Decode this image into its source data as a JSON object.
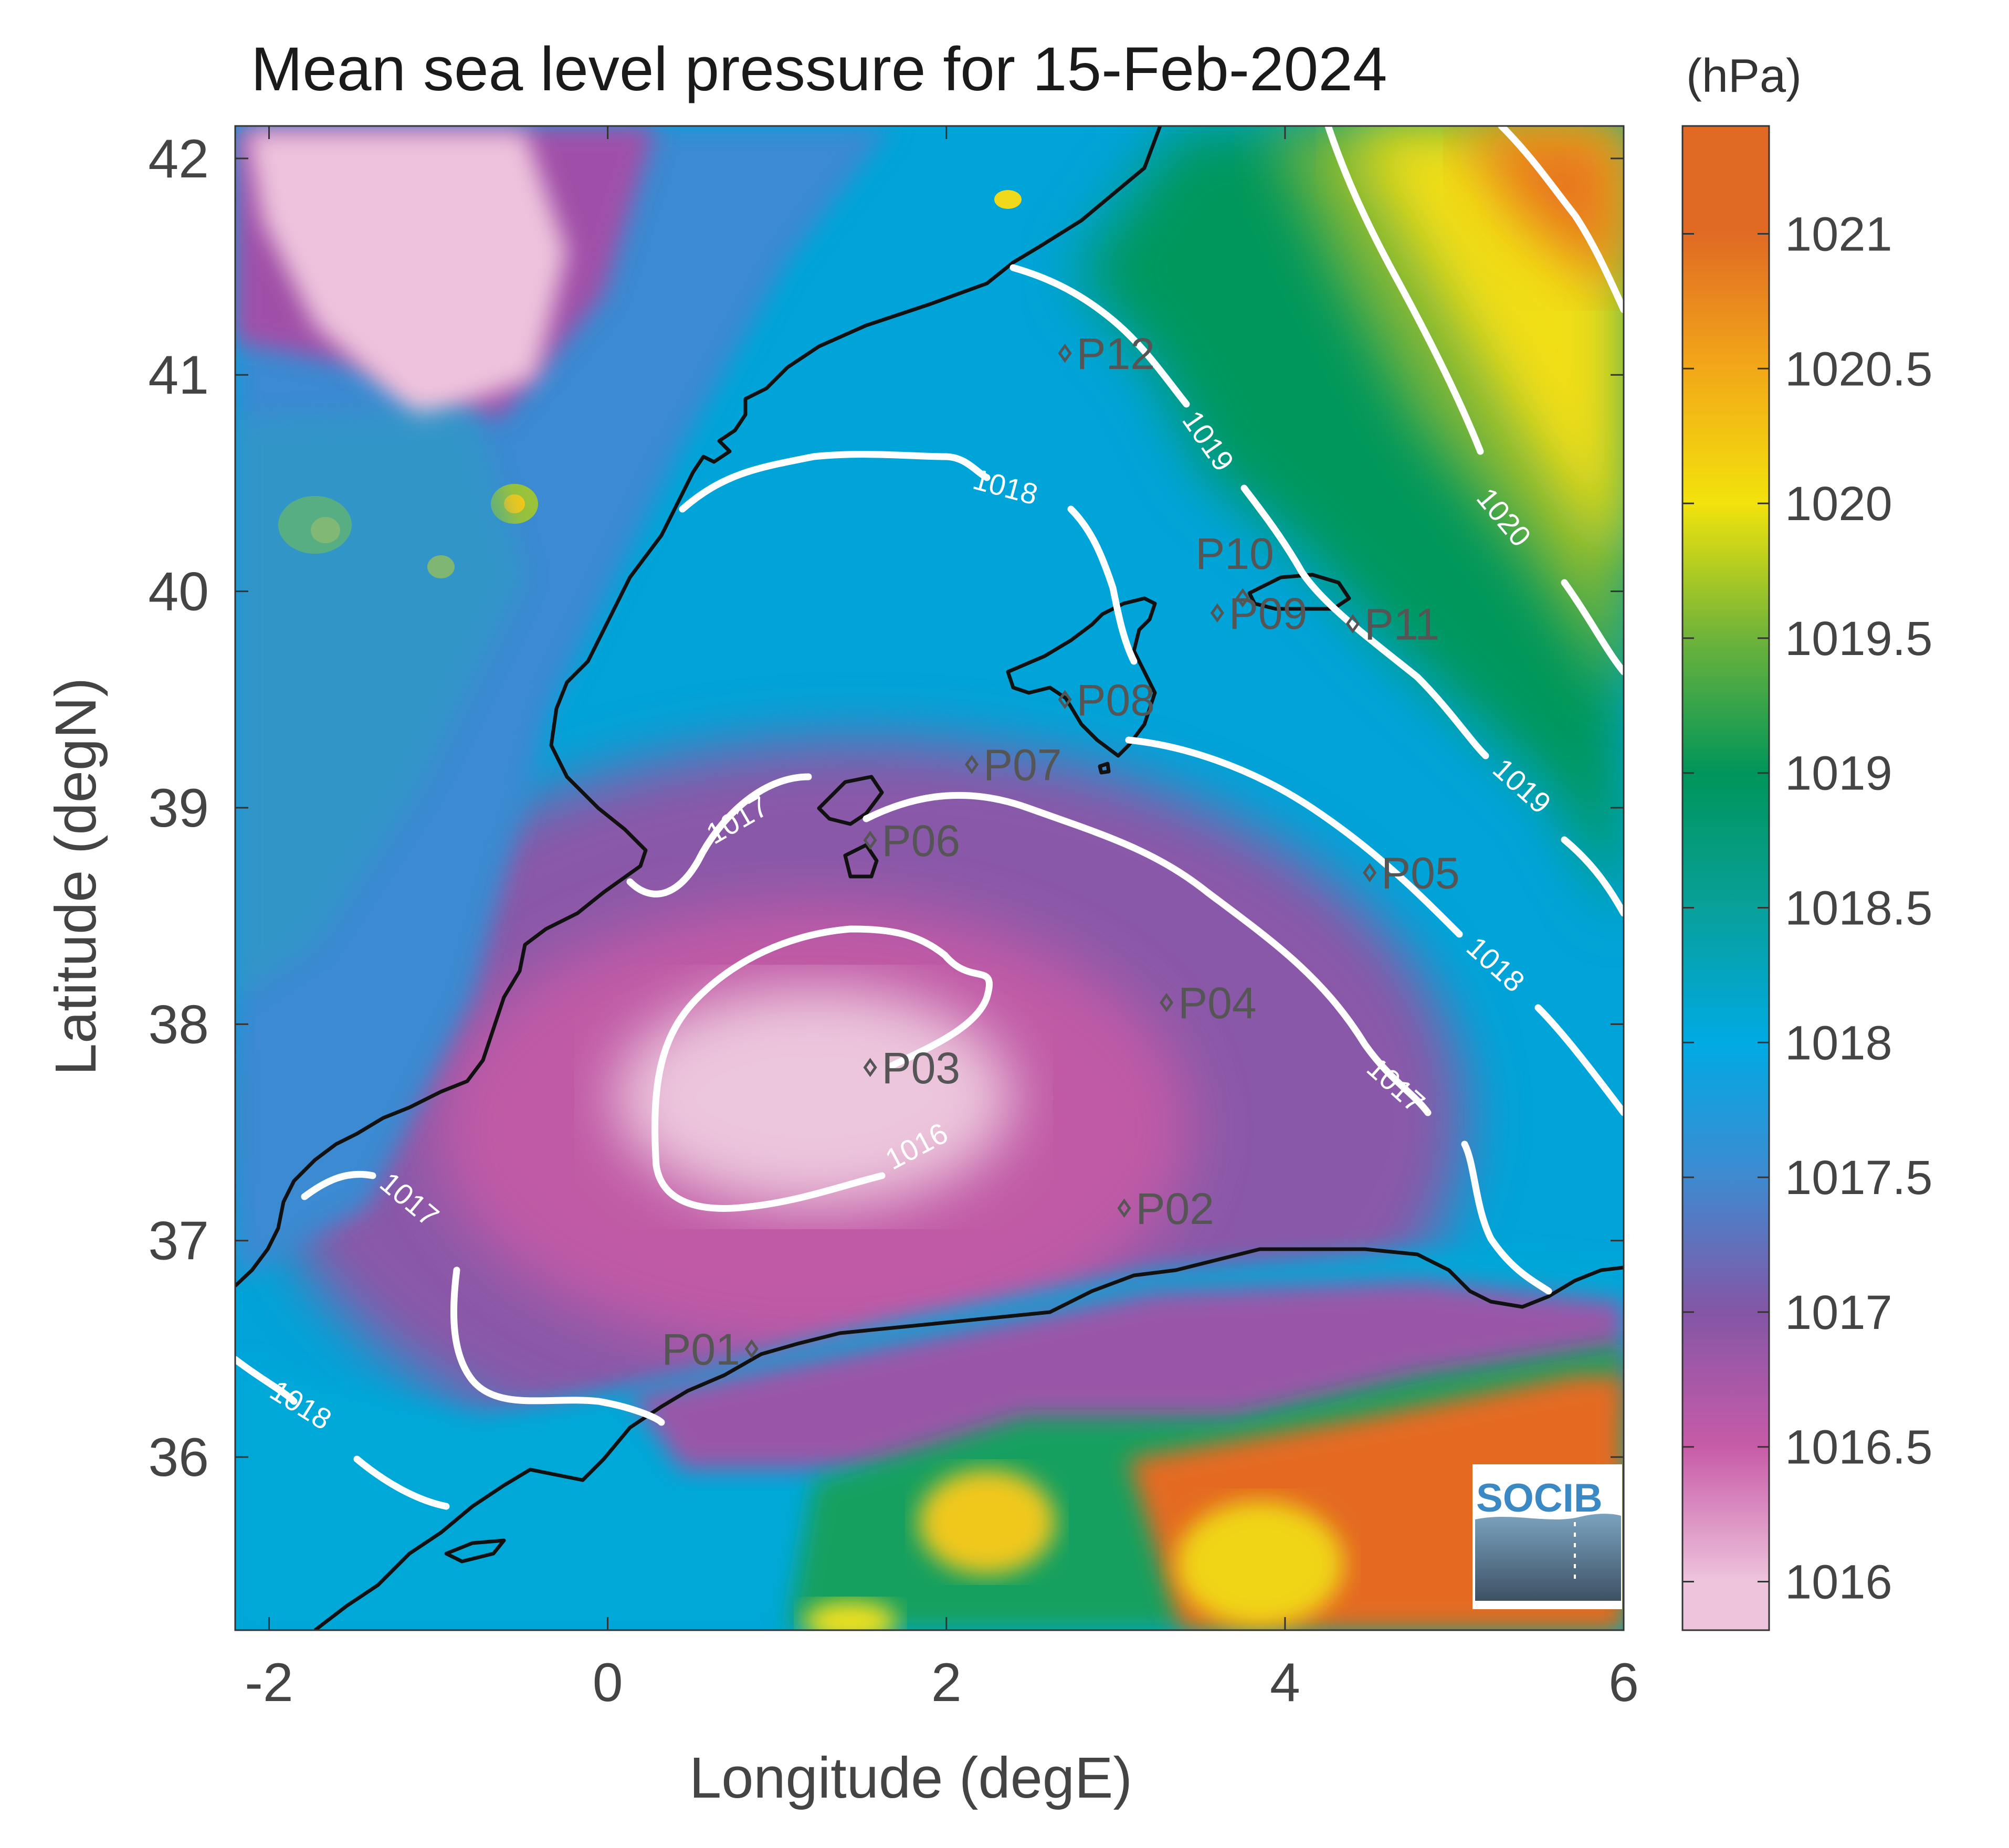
{
  "title": "Mean sea level pressure for 15-Feb-2024",
  "chart_data": {
    "type": "heatmap",
    "title": "Mean sea level pressure for 15-Feb-2024",
    "xlabel": "Longitude (degE)",
    "ylabel": "Latitude (degN)",
    "xlim": [
      -2.2,
      6
    ],
    "ylim": [
      35.2,
      42.15
    ],
    "xticks": [
      "-2",
      "0",
      "2",
      "4",
      "6"
    ],
    "xtick_values": [
      -2,
      0,
      2,
      4,
      6
    ],
    "yticks": [
      "36",
      "37",
      "38",
      "39",
      "40",
      "41",
      "42"
    ],
    "ytick_values": [
      36,
      37,
      38,
      39,
      40,
      41,
      42
    ],
    "colorbar": {
      "unit": "(hPa)",
      "range": [
        1015.82,
        1021.4
      ],
      "ticks": [
        "1016",
        "1016.5",
        "1017",
        "1017.5",
        "1018",
        "1018.5",
        "1019",
        "1019.5",
        "1020",
        "1020.5",
        "1021"
      ],
      "tick_values": [
        1016,
        1016.5,
        1017,
        1017.5,
        1018,
        1018.5,
        1019,
        1019.5,
        1020,
        1020.5,
        1021
      ],
      "colors": [
        "#eec4dc",
        "#c85ba8",
        "#8456a6",
        "#3f8ad0",
        "#00aae4",
        "#08a09a",
        "#00955a",
        "#6eb33a",
        "#f2e30c",
        "#f2a818",
        "#e06a24"
      ]
    },
    "contour_labels": [
      "1016",
      "1017",
      "1017",
      "1017",
      "1018",
      "1018",
      "1018",
      "1019",
      "1019",
      "1020"
    ],
    "points": [
      {
        "label": "P01",
        "lon": 0.85,
        "lat": 36.5
      },
      {
        "label": "P02",
        "lon": 3.05,
        "lat": 37.15
      },
      {
        "label": "P03",
        "lon": 1.55,
        "lat": 37.8
      },
      {
        "label": "P04",
        "lon": 3.3,
        "lat": 38.1
      },
      {
        "label": "P05",
        "lon": 4.5,
        "lat": 38.7
      },
      {
        "label": "P06",
        "lon": 1.55,
        "lat": 38.85
      },
      {
        "label": "P07",
        "lon": 2.15,
        "lat": 39.2
      },
      {
        "label": "P08",
        "lon": 2.7,
        "lat": 39.5
      },
      {
        "label": "P09",
        "lon": 3.6,
        "lat": 39.9
      },
      {
        "label": "P10",
        "lon": 3.75,
        "lat": 39.97
      },
      {
        "label": "P11",
        "lon": 4.4,
        "lat": 39.85
      },
      {
        "label": "P12",
        "lon": 2.7,
        "lat": 41.1
      }
    ]
  },
  "logo": {
    "text": "SOCIB"
  }
}
